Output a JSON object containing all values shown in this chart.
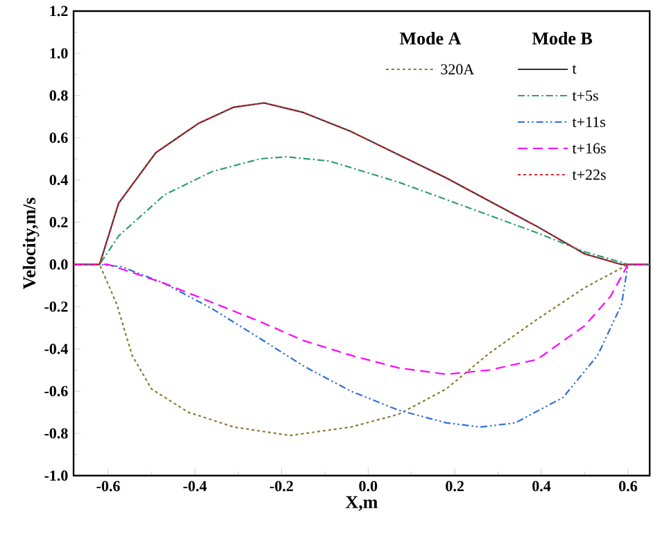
{
  "chart_data": {
    "type": "line",
    "xlabel": "X,m",
    "ylabel": "Velocity,m/s",
    "annotations": [
      "Mode A",
      "Mode B"
    ],
    "xlim": [
      -0.68,
      0.65
    ],
    "ylim": [
      -1.0,
      1.2
    ],
    "xticks": [
      -0.6,
      -0.4,
      -0.2,
      {
        "value": 0,
        "label": "0.0"
      },
      0.2,
      0.4,
      0.6
    ],
    "yticks": [
      {
        "value": -1,
        "label": "-1.0"
      },
      -0.8,
      -0.6,
      -0.4,
      -0.2,
      {
        "value": 0,
        "label": "0.0"
      },
      0.2,
      0.4,
      0.6,
      0.8,
      {
        "value": 1,
        "label": "1.0"
      },
      1.2
    ],
    "legend": "top right",
    "grid": false,
    "marker": "none",
    "series": [
      {
        "name": "320A",
        "color": "#8c7a2e",
        "line_style": "dotted",
        "x": [
          -0.68,
          -0.62,
          -0.58,
          -0.545,
          -0.5,
          -0.415,
          -0.31,
          -0.18,
          -0.04,
          0.07,
          0.18,
          0.28,
          0.39,
          0.5,
          0.6,
          0.65
        ],
        "values": [
          0,
          0,
          -0.19,
          -0.43,
          -0.59,
          -0.7,
          -0.77,
          -0.81,
          -0.77,
          -0.71,
          -0.59,
          -0.42,
          -0.26,
          -0.11,
          0,
          0
        ]
      },
      {
        "name": "t",
        "color": "#333333",
        "line_style": "solid",
        "x": [
          -0.68,
          -0.62,
          -0.576,
          -0.49,
          -0.39,
          -0.31,
          -0.24,
          -0.15,
          -0.04,
          0.07,
          0.18,
          0.28,
          0.39,
          0.5,
          0.585,
          0.65
        ],
        "values": [
          0,
          0,
          0.29,
          0.53,
          0.67,
          0.745,
          0.765,
          0.72,
          0.63,
          0.52,
          0.41,
          0.3,
          0.18,
          0.05,
          0,
          0
        ]
      },
      {
        "name": "t+5s",
        "color": "#2e9e6e",
        "line_style": "dashdot",
        "x": [
          -0.68,
          -0.62,
          -0.576,
          -0.47,
          -0.36,
          -0.25,
          -0.19,
          -0.09,
          0.07,
          0.23,
          0.39,
          0.5,
          0.585,
          0.6,
          0.65
        ],
        "values": [
          0,
          0,
          0.135,
          0.33,
          0.44,
          0.5,
          0.51,
          0.49,
          0.39,
          0.27,
          0.15,
          0.06,
          0.01,
          0,
          0
        ]
      },
      {
        "name": "t+11s",
        "color": "#2e6fd6",
        "line_style": "dashdotdot",
        "x": [
          -0.68,
          -0.62,
          -0.57,
          -0.47,
          -0.36,
          -0.25,
          -0.15,
          -0.04,
          0.07,
          0.18,
          0.26,
          0.34,
          0.45,
          0.53,
          0.585,
          0.6,
          0.65
        ],
        "values": [
          0,
          0,
          -0.01,
          -0.09,
          -0.21,
          -0.35,
          -0.48,
          -0.6,
          -0.69,
          -0.75,
          -0.77,
          -0.75,
          -0.63,
          -0.43,
          -0.19,
          0,
          0
        ]
      },
      {
        "name": "t+16s",
        "color": "#ff00ff",
        "line_style": "dashed",
        "x": [
          -0.68,
          -0.6,
          -0.47,
          -0.36,
          -0.25,
          -0.15,
          -0.04,
          0.07,
          0.18,
          0.28,
          0.39,
          0.5,
          0.56,
          0.6,
          0.65
        ],
        "values": [
          0,
          0,
          -0.09,
          -0.18,
          -0.27,
          -0.36,
          -0.43,
          -0.49,
          -0.52,
          -0.5,
          -0.45,
          -0.29,
          -0.15,
          0,
          0
        ]
      },
      {
        "name": "t+22s",
        "color": "#e0202a",
        "line_style": "dotted",
        "x": [
          -0.68,
          -0.62,
          -0.576,
          -0.49,
          -0.39,
          -0.31,
          -0.24,
          -0.15,
          -0.04,
          0.07,
          0.18,
          0.28,
          0.39,
          0.5,
          0.585,
          0.65
        ],
        "values": [
          0,
          0,
          0.29,
          0.53,
          0.67,
          0.745,
          0.765,
          0.72,
          0.63,
          0.52,
          0.41,
          0.3,
          0.18,
          0.05,
          0,
          0
        ]
      }
    ]
  }
}
